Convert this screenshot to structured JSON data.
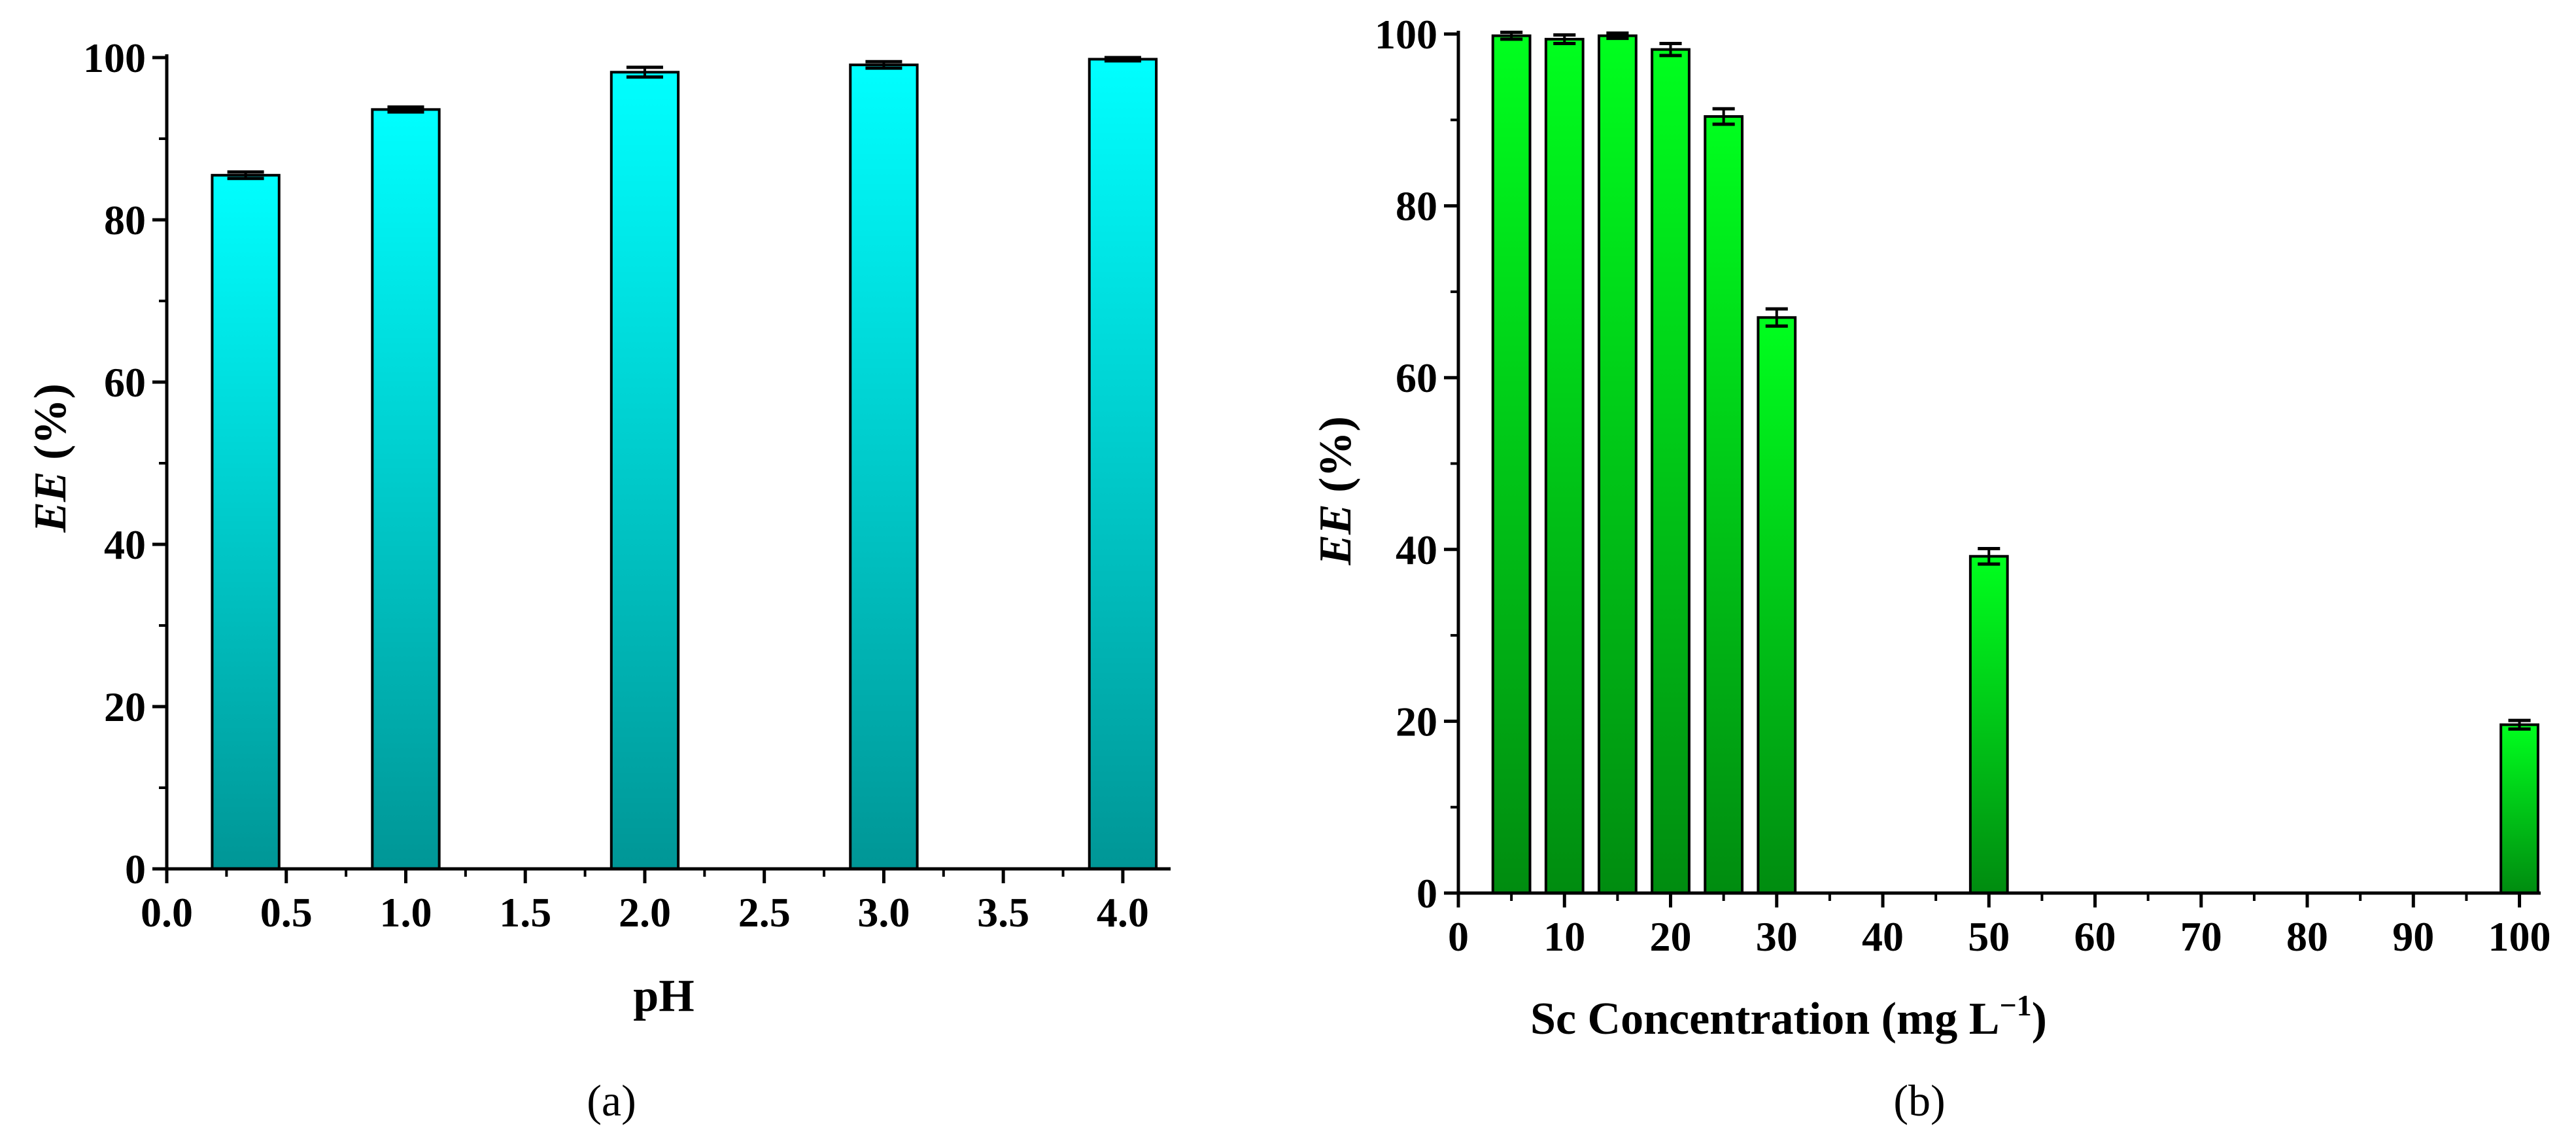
{
  "colors": {
    "panel_a_top": "#00FFFF",
    "panel_a_bottom": "#009696",
    "panel_b_top": "#00FF1E",
    "panel_b_bottom": "#008C10",
    "axis": "#000000"
  },
  "panels": [
    {
      "label_open": "(",
      "label_letter": "a",
      "label_close": ")"
    },
    {
      "label_open": "(",
      "label_letter": "b",
      "label_close": ")"
    }
  ],
  "chart_data": [
    {
      "type": "bar",
      "xlabel": "pH",
      "ylabel_italic": "EE",
      "ylabel_rest": " (%)",
      "xlim": [
        0.0,
        4.2
      ],
      "ylim": [
        0,
        100
      ],
      "xticks": [
        "0.0",
        "0.5",
        "1.0",
        "1.5",
        "2.0",
        "2.5",
        "3.0",
        "3.5",
        "4.0"
      ],
      "yticks": [
        "0",
        "20",
        "40",
        "60",
        "80",
        "100"
      ],
      "bar_width": 0.28,
      "x": [
        0.33,
        1.0,
        2.0,
        3.0,
        4.0
      ],
      "values": [
        85.5,
        93.6,
        98.2,
        99.1,
        99.8
      ],
      "errors": [
        0.4,
        0.3,
        0.6,
        0.4,
        0.2
      ],
      "grid": false
    },
    {
      "type": "bar",
      "xlabel": "Sc Concentration (mg L",
      "xlabel_sup": "−1",
      "xlabel_end": ")",
      "ylabel_italic": "EE",
      "ylabel_rest": " (%)",
      "xlim": [
        0,
        102
      ],
      "ylim": [
        0,
        100
      ],
      "xticks": [
        "0",
        "10",
        "20",
        "30",
        "40",
        "50",
        "60",
        "70",
        "80",
        "90",
        "100"
      ],
      "yticks": [
        "0",
        "20",
        "40",
        "60",
        "80",
        "100"
      ],
      "bar_width": 3.5,
      "x": [
        5,
        10,
        15,
        20,
        25,
        30,
        50,
        100
      ],
      "values": [
        99.8,
        99.4,
        99.8,
        98.2,
        90.4,
        67.0,
        39.2,
        19.6
      ],
      "errors": [
        0.4,
        0.5,
        0.3,
        0.7,
        0.9,
        1.0,
        0.9,
        0.5
      ],
      "grid": false
    }
  ]
}
